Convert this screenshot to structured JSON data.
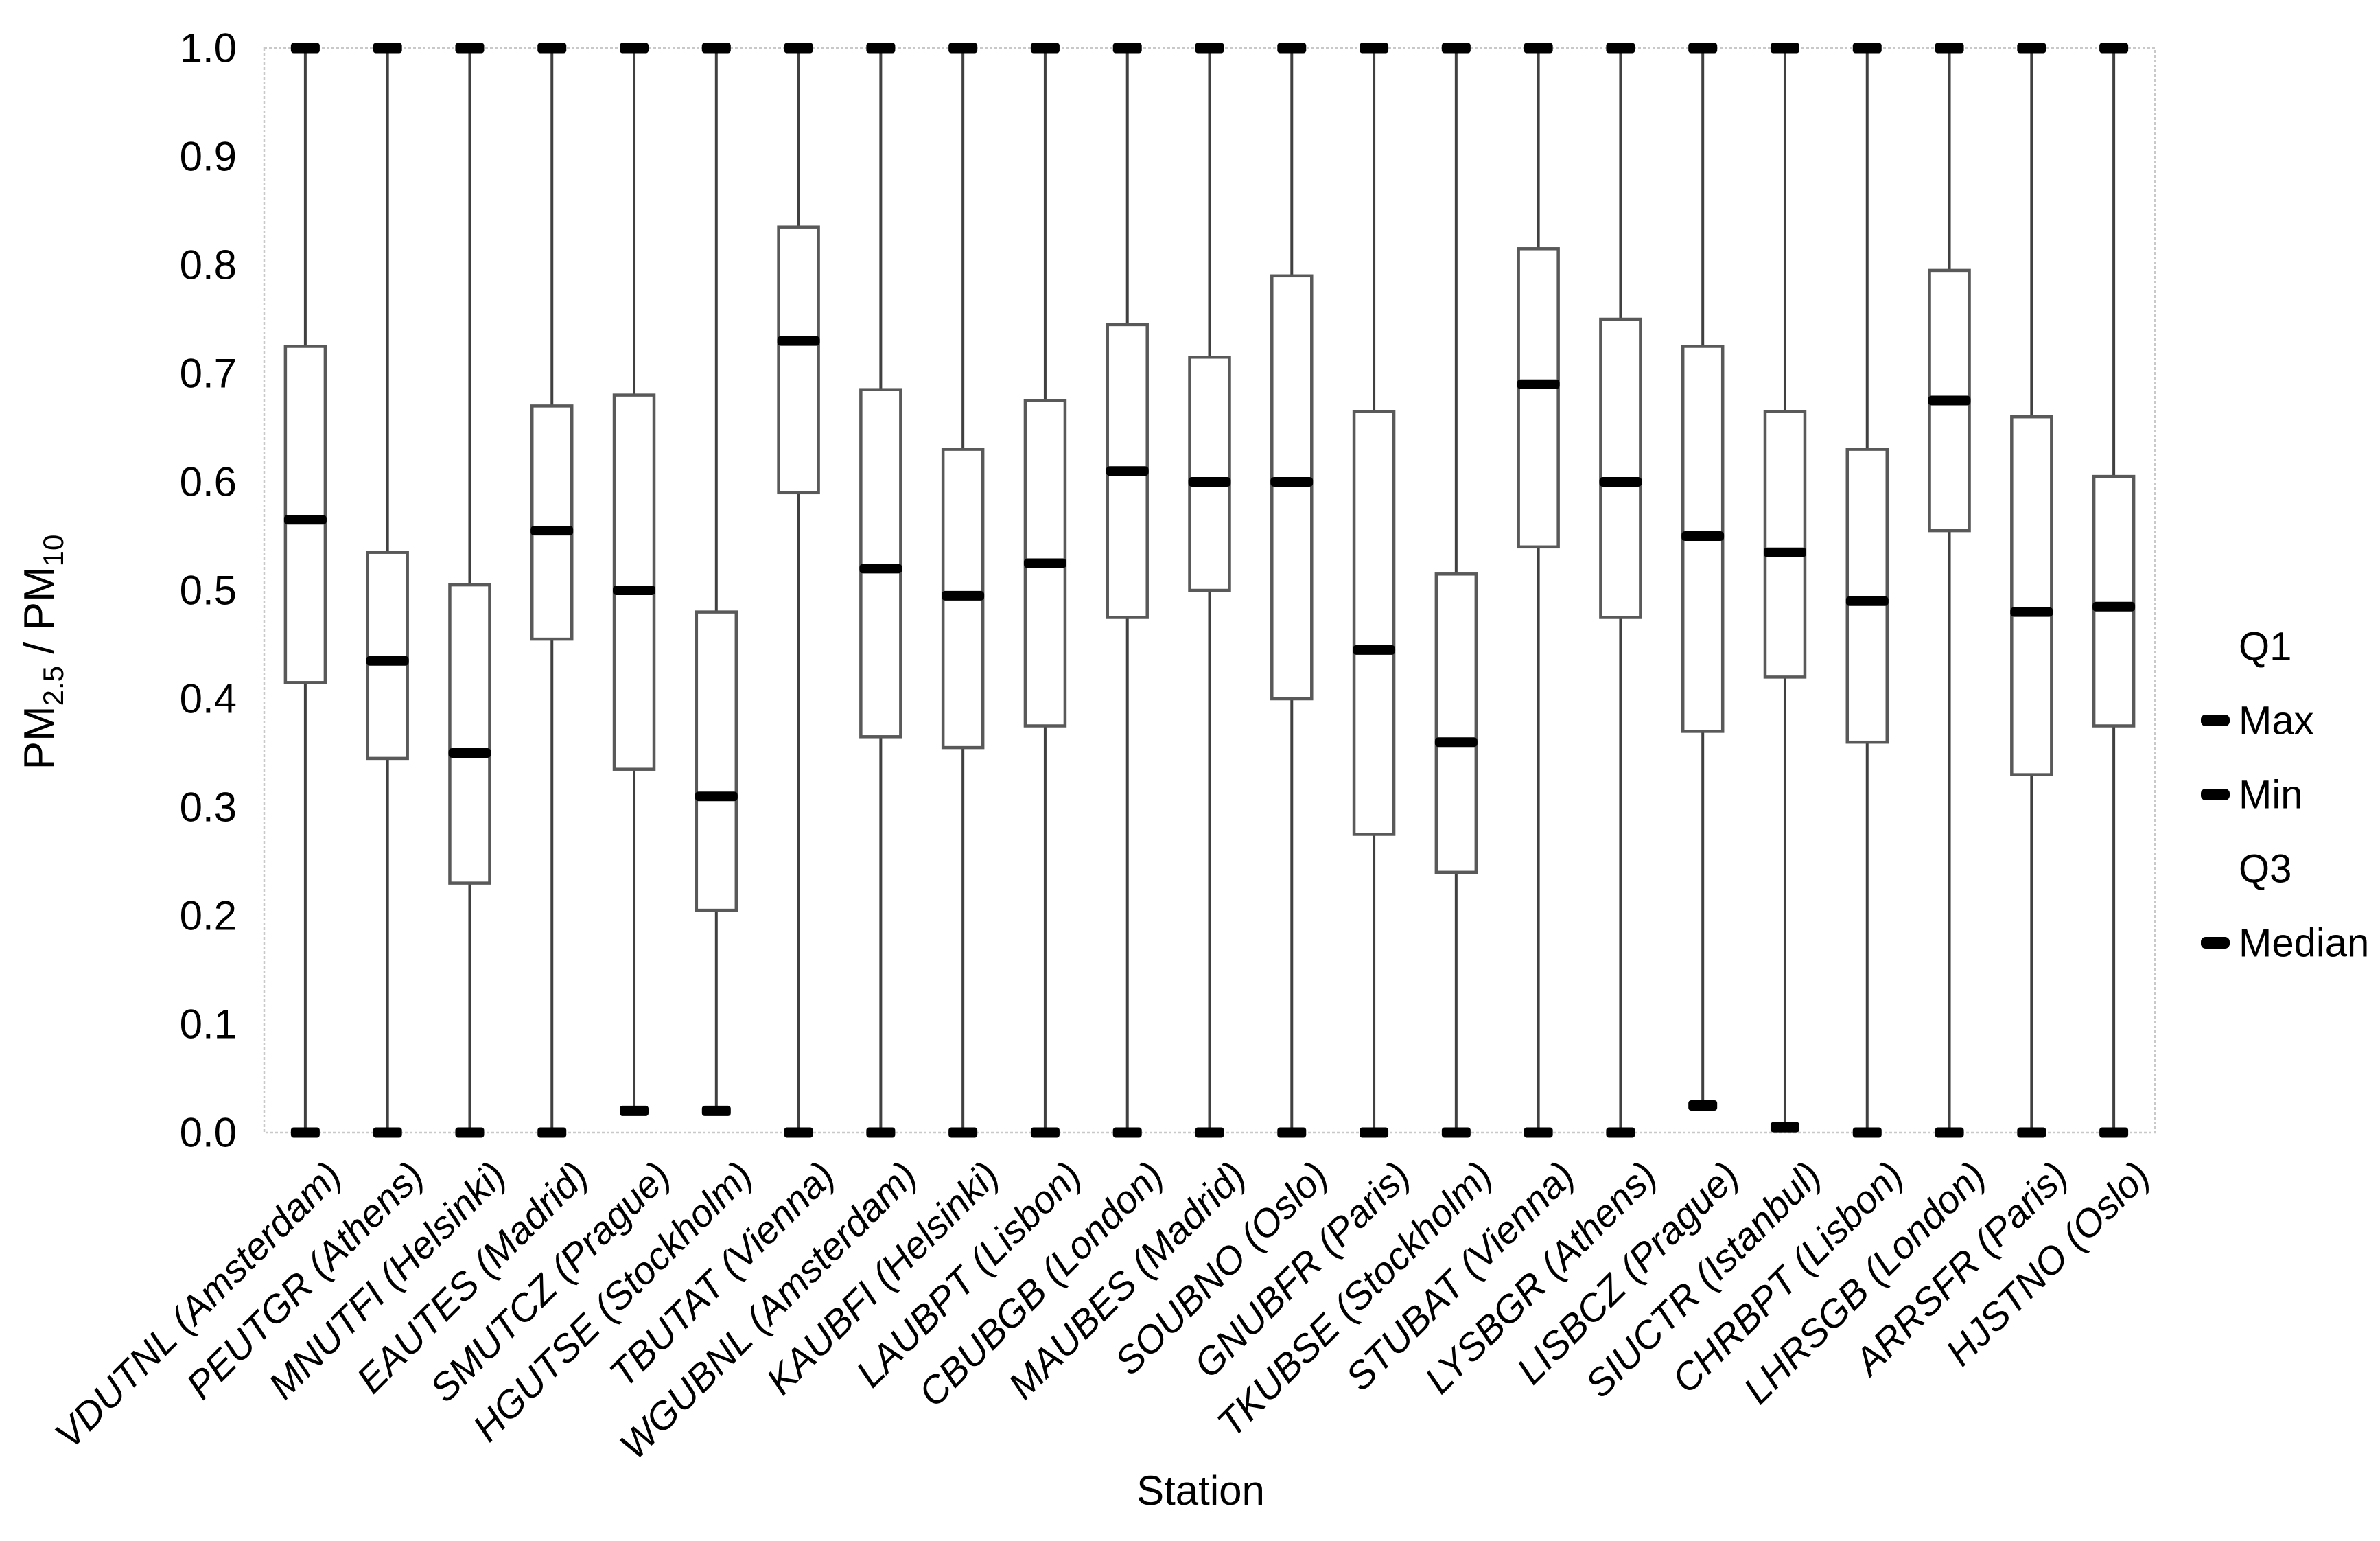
{
  "chart_data": {
    "type": "box",
    "title": "",
    "xlabel": "Station",
    "ylabel": "PM2.5 / PM10",
    "ylabel_parts": {
      "prefix": "PM",
      "sub1": "2.5",
      "mid": " / PM",
      "sub2": "10"
    },
    "ylim": [
      0.0,
      1.0
    ],
    "ytick_step": 0.1,
    "yticks": [
      "1.0",
      "0.9",
      "0.8",
      "0.7",
      "0.6",
      "0.5",
      "0.4",
      "0.3",
      "0.2",
      "0.1",
      "0.0"
    ],
    "grid": "top-border-only",
    "legend_position": "right",
    "legend": [
      {
        "label": "Q1",
        "marker": false
      },
      {
        "label": "Max",
        "marker": true
      },
      {
        "label": "Min",
        "marker": true
      },
      {
        "label": "Q3",
        "marker": false
      },
      {
        "label": "Median",
        "marker": true
      }
    ],
    "series": [
      {
        "station": "VDUTNL (Amsterdam)",
        "min": 0.0,
        "q1": 0.415,
        "median": 0.565,
        "q3": 0.725,
        "max": 1.0
      },
      {
        "station": "PEUTGR (Athens)",
        "min": 0.0,
        "q1": 0.345,
        "median": 0.435,
        "q3": 0.535,
        "max": 1.0
      },
      {
        "station": "MNUTFI (Helsinki)",
        "min": 0.0,
        "q1": 0.23,
        "median": 0.35,
        "q3": 0.505,
        "max": 1.0
      },
      {
        "station": "EAUTES (Madrid)",
        "min": 0.0,
        "q1": 0.455,
        "median": 0.555,
        "q3": 0.67,
        "max": 1.0
      },
      {
        "station": "SMUTCZ (Prague)",
        "min": 0.02,
        "q1": 0.335,
        "median": 0.5,
        "q3": 0.68,
        "max": 1.0
      },
      {
        "station": "HGUTSE (Stockholm)",
        "min": 0.02,
        "q1": 0.205,
        "median": 0.31,
        "q3": 0.48,
        "max": 1.0
      },
      {
        "station": "TBUTAT (Vienna)",
        "min": 0.0,
        "q1": 0.59,
        "median": 0.73,
        "q3": 0.835,
        "max": 1.0
      },
      {
        "station": "WGUBNL (Amsterdam)",
        "min": 0.0,
        "q1": 0.365,
        "median": 0.52,
        "q3": 0.685,
        "max": 1.0
      },
      {
        "station": "KAUBFI (Helsinki)",
        "min": 0.0,
        "q1": 0.355,
        "median": 0.495,
        "q3": 0.63,
        "max": 1.0
      },
      {
        "station": "LAUBPT (Lisbon)",
        "min": 0.0,
        "q1": 0.375,
        "median": 0.525,
        "q3": 0.675,
        "max": 1.0
      },
      {
        "station": "CBUBGB (London)",
        "min": 0.0,
        "q1": 0.475,
        "median": 0.61,
        "q3": 0.745,
        "max": 1.0
      },
      {
        "station": "MAUBES (Madrid)",
        "min": 0.0,
        "q1": 0.5,
        "median": 0.6,
        "q3": 0.715,
        "max": 1.0
      },
      {
        "station": "SOUBNO (Oslo)",
        "min": 0.0,
        "q1": 0.4,
        "median": 0.6,
        "q3": 0.79,
        "max": 1.0
      },
      {
        "station": "GNUBFR (Paris)",
        "min": 0.0,
        "q1": 0.275,
        "median": 0.445,
        "q3": 0.665,
        "max": 1.0
      },
      {
        "station": "TKUBSE (Stockholm)",
        "min": 0.0,
        "q1": 0.24,
        "median": 0.36,
        "q3": 0.515,
        "max": 1.0
      },
      {
        "station": "STUBAT (Vienna)",
        "min": 0.0,
        "q1": 0.54,
        "median": 0.69,
        "q3": 0.815,
        "max": 1.0
      },
      {
        "station": "LYSBGR (Athens)",
        "min": 0.0,
        "q1": 0.475,
        "median": 0.6,
        "q3": 0.75,
        "max": 1.0
      },
      {
        "station": "LISBCZ (Prague)",
        "min": 0.025,
        "q1": 0.37,
        "median": 0.55,
        "q3": 0.725,
        "max": 1.0
      },
      {
        "station": "SIUCTR (Istanbul)",
        "min": 0.005,
        "q1": 0.42,
        "median": 0.535,
        "q3": 0.665,
        "max": 1.0
      },
      {
        "station": "CHRBPT (Lisbon)",
        "min": 0.0,
        "q1": 0.36,
        "median": 0.49,
        "q3": 0.63,
        "max": 1.0
      },
      {
        "station": "LHRSGB (London)",
        "min": 0.0,
        "q1": 0.555,
        "median": 0.675,
        "q3": 0.795,
        "max": 1.0
      },
      {
        "station": "ARRSFR (Paris)",
        "min": 0.0,
        "q1": 0.33,
        "median": 0.48,
        "q3": 0.66,
        "max": 1.0
      },
      {
        "station": "HJSTNO (Oslo)",
        "min": 0.0,
        "q1": 0.375,
        "median": 0.485,
        "q3": 0.605,
        "max": 1.0
      }
    ]
  },
  "colors": {
    "background": "#ffffff",
    "text": "#000000",
    "box_border": "#595959",
    "box_fill": "#ffffff",
    "whisker": "#404040",
    "median": "#000000",
    "cap": "#000000",
    "plot_border": "#c9c9c9",
    "legend_marker": "#000000"
  }
}
